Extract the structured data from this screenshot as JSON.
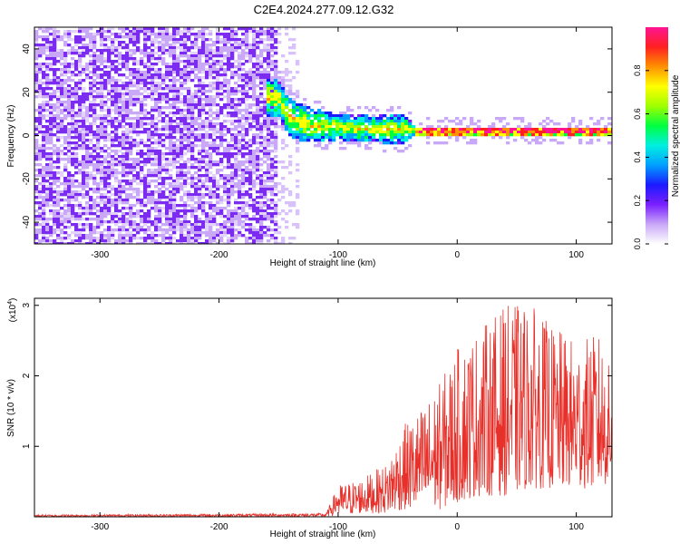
{
  "title": "C2E4.2024.277.09.12.G32",
  "colors": {
    "background": "#ffffff",
    "axis": "#000000",
    "snr_line": "#e8302a",
    "spectrogram_noise": "#7b2cf0",
    "colormap": [
      "#ffffff",
      "#c9a8f7",
      "#7a1fff",
      "#1a1aff",
      "#00a0ff",
      "#00f0e0",
      "#00ff40",
      "#a0ff00",
      "#ffff00",
      "#ff9000",
      "#ff2020",
      "#ff1493"
    ]
  },
  "chart_data": [
    {
      "type": "heatmap",
      "name": "spectrogram",
      "xlabel": "Height of straight line (km)",
      "ylabel": "Frequency (Hz)",
      "xlim": [
        -355,
        130
      ],
      "ylim": [
        -50,
        50
      ],
      "xticks": [
        -300,
        -200,
        -100,
        0,
        100
      ],
      "yticks": [
        -40,
        -20,
        0,
        20,
        40
      ],
      "xtick_labels": [
        "-300",
        "-200",
        "-100",
        "0",
        "100"
      ],
      "ytick_labels": [
        "-40",
        "-20",
        "0",
        "20",
        "40"
      ],
      "noise_region": [
        -355,
        -150
      ],
      "signal_band": [
        {
          "x": -150,
          "center": 17,
          "halfwidth": 9
        },
        {
          "x": -140,
          "center": 8,
          "halfwidth": 9
        },
        {
          "x": -125,
          "center": 5,
          "halfwidth": 8
        },
        {
          "x": -100,
          "center": 4,
          "halfwidth": 6
        },
        {
          "x": -70,
          "center": 3,
          "halfwidth": 6
        },
        {
          "x": -45,
          "center": 3,
          "halfwidth": 7
        },
        {
          "x": -35,
          "center": 2,
          "halfwidth": 2
        },
        {
          "x": 0,
          "center": 2,
          "halfwidth": 2
        },
        {
          "x": 130,
          "center": 2,
          "halfwidth": 2
        }
      ]
    },
    {
      "type": "colorbar",
      "name": "colorbar",
      "label": "Normalized spectral amplitude",
      "range": [
        0,
        1
      ],
      "ticks": [
        0.0,
        0.2,
        0.4,
        0.6,
        0.8
      ],
      "tick_labels": [
        "0.0",
        "0.2",
        "0.4",
        "0.6",
        "0.8"
      ]
    },
    {
      "type": "line",
      "name": "snr",
      "xlabel": "Height of straight line (km)",
      "ylabel": "SNR (10 * v/v)",
      "scale_label": "(x10",
      "scale_exponent": "4",
      "scale_suffix": ")",
      "xlim": [
        -355,
        130
      ],
      "ylim": [
        0,
        3.1
      ],
      "xticks": [
        -300,
        -200,
        -100,
        0,
        100
      ],
      "yticks": [
        1,
        2,
        3
      ],
      "xtick_labels": [
        "-300",
        "-200",
        "-100",
        "0",
        "100"
      ],
      "ytick_labels": [
        "1",
        "2",
        "3"
      ],
      "envelope": [
        {
          "x": -355,
          "lo": 0.0,
          "hi": 0.03
        },
        {
          "x": -200,
          "lo": 0.0,
          "hi": 0.04
        },
        {
          "x": -110,
          "lo": 0.0,
          "hi": 0.05
        },
        {
          "x": -100,
          "lo": 0.02,
          "hi": 0.45
        },
        {
          "x": -80,
          "lo": 0.05,
          "hi": 0.55
        },
        {
          "x": -60,
          "lo": 0.05,
          "hi": 0.75
        },
        {
          "x": -45,
          "lo": 0.1,
          "hi": 1.3
        },
        {
          "x": -30,
          "lo": 0.1,
          "hi": 1.55
        },
        {
          "x": -15,
          "lo": 0.1,
          "hi": 1.9
        },
        {
          "x": 0,
          "lo": 0.2,
          "hi": 2.4
        },
        {
          "x": 20,
          "lo": 0.3,
          "hi": 2.7
        },
        {
          "x": 40,
          "lo": 0.3,
          "hi": 3.0
        },
        {
          "x": 60,
          "lo": 0.4,
          "hi": 3.05
        },
        {
          "x": 80,
          "lo": 0.4,
          "hi": 2.7
        },
        {
          "x": 100,
          "lo": 0.4,
          "hi": 2.5
        },
        {
          "x": 120,
          "lo": 0.4,
          "hi": 2.6
        },
        {
          "x": 130,
          "lo": 0.5,
          "hi": 2.0
        }
      ]
    }
  ]
}
